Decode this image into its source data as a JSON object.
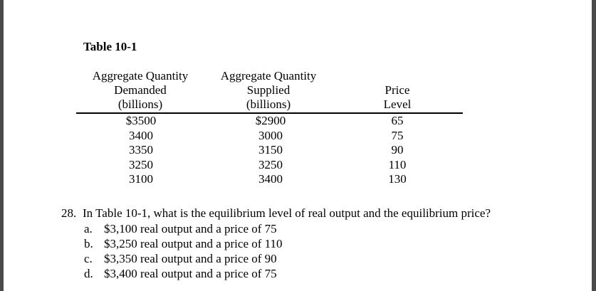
{
  "table": {
    "title": "Table 10-1",
    "headers": {
      "col1": [
        "Aggregate Quantity",
        "Demanded",
        "(billions)"
      ],
      "col2": [
        "Aggregate Quantity",
        "Supplied",
        "(billions)"
      ],
      "col3": [
        "Price",
        "Level"
      ]
    },
    "rows": [
      {
        "demanded": "$3500",
        "supplied": "$2900",
        "price": "65"
      },
      {
        "demanded": "3400",
        "supplied": "3000",
        "price": "75"
      },
      {
        "demanded": "3350",
        "supplied": "3150",
        "price": "90"
      },
      {
        "demanded": "3250",
        "supplied": "3250",
        "price": "110"
      },
      {
        "demanded": "3100",
        "supplied": "3400",
        "price": "130"
      }
    ]
  },
  "question": {
    "number": "28.",
    "text": "In Table 10-1, what is the equilibrium level of real output and the equilibrium price?",
    "options": [
      {
        "letter": "a.",
        "text": "$3,100 real output and a price of 75"
      },
      {
        "letter": "b.",
        "text": "$3,250 real output and a price of 110"
      },
      {
        "letter": "c.",
        "text": "$3,350 real output and a price of 90"
      },
      {
        "letter": "d.",
        "text": "$3,400 real output and a price of 75"
      }
    ]
  }
}
